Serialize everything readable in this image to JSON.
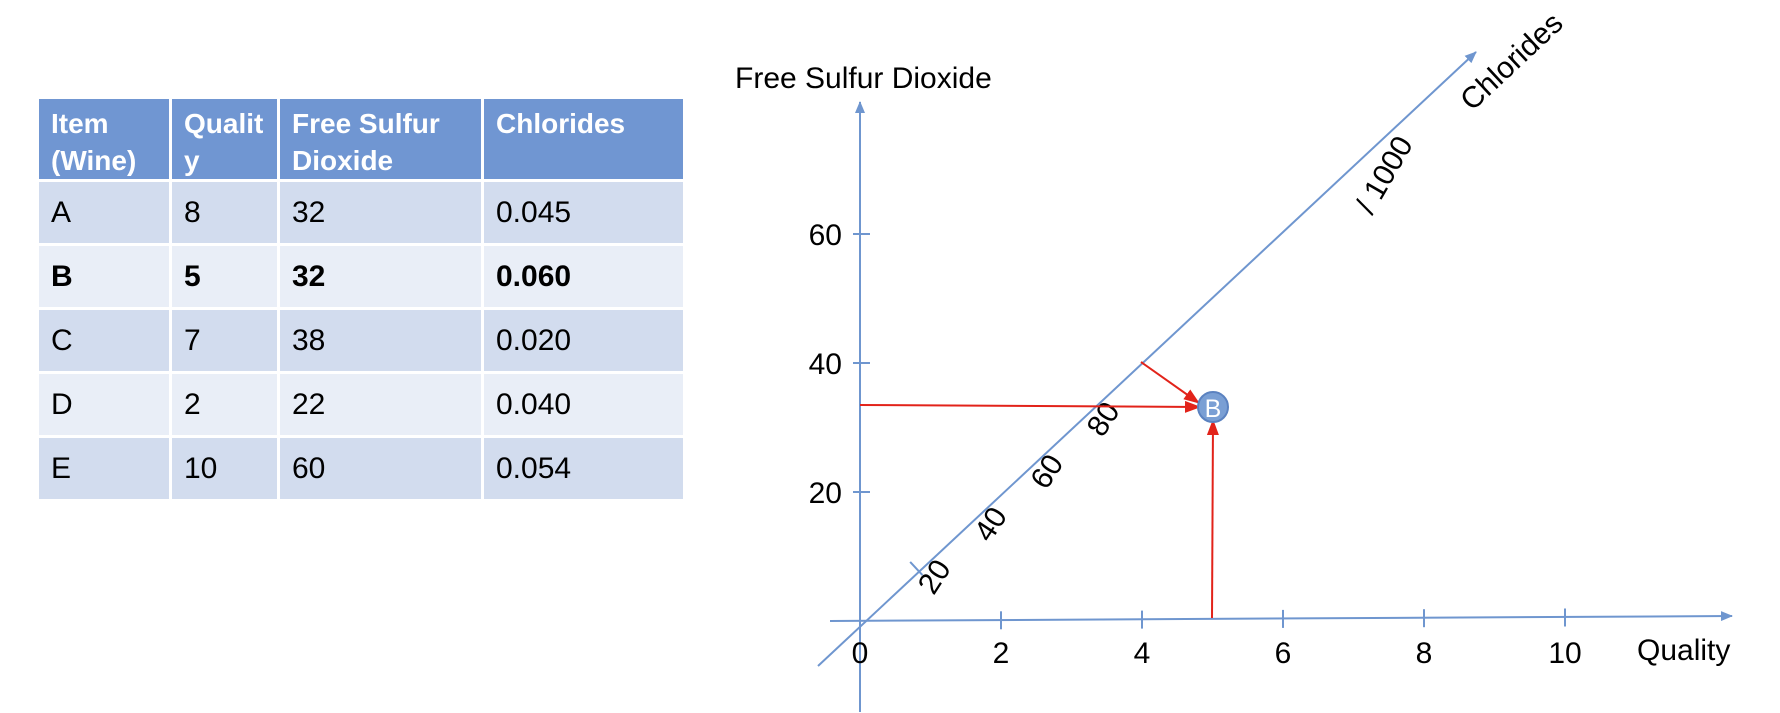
{
  "table": {
    "headers": [
      "Item (Wine)",
      "Quality",
      "Free Sulfur Dioxide",
      "Chlorides"
    ],
    "rows": [
      {
        "item": "A",
        "quality": "8",
        "so2": "32",
        "chlorides": "0.045",
        "bold": false
      },
      {
        "item": "B",
        "quality": "5",
        "so2": "32",
        "chlorides": "0.060",
        "bold": true
      },
      {
        "item": "C",
        "quality": "7",
        "so2": "38",
        "chlorides": "0.020",
        "bold": false
      },
      {
        "item": "D",
        "quality": "2",
        "so2": "22",
        "chlorides": "0.040",
        "bold": false
      },
      {
        "item": "E",
        "quality": "10",
        "so2": "60",
        "chlorides": "0.054",
        "bold": false
      }
    ]
  },
  "diagram": {
    "y_axis_title": "Free Sulfur Dioxide",
    "x_axis_title": "Quality",
    "z_axis_title": "Chlorides",
    "z_scale_note": "/ 1000",
    "x_ticks": [
      0,
      2,
      4,
      6,
      8,
      10
    ],
    "y_ticks": [
      20,
      40,
      60
    ],
    "z_ticks": [
      20,
      40,
      60,
      80
    ],
    "point": {
      "label": "B",
      "quality": 5,
      "so2": 32,
      "chlorides": 60
    },
    "colors": {
      "axis": "#6f96cf",
      "arrow": "#e2231a",
      "point": "#7a9fd4"
    }
  }
}
